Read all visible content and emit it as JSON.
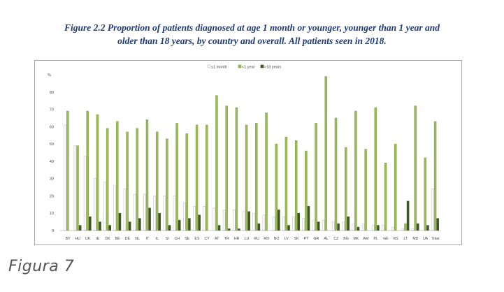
{
  "caption": {
    "line1": "Figure 2.2 Proportion of patients diagnosed at age 1 month or younger, younger than 1 year and",
    "line2": "older than 18 years, by country and overall. All patients seen in 2018."
  },
  "figure_label": "Figura 7",
  "colors": {
    "le1month": "#ffffff",
    "lt1year": "#9bbb59",
    "gt18years": "#3f5426",
    "bar_outline_light": "#b7b7b7",
    "bar_outline_green": "#7f9f45"
  },
  "chart_data": {
    "type": "bar",
    "title": "",
    "xlabel": "",
    "ylabel": "%",
    "ylim": [
      0,
      90
    ],
    "yticks": [
      0,
      10,
      20,
      30,
      40,
      50,
      60,
      70,
      80
    ],
    "grid": false,
    "legend": "top-center",
    "categories": [
      "BY",
      "HU",
      "UK",
      "IE",
      "DK",
      "BE",
      "DE",
      "NL",
      "IT",
      "IL",
      "SI",
      "CH",
      "SE",
      "ES",
      "CY",
      "AT",
      "TR",
      "HR",
      "LU",
      "RU",
      "RO",
      "NO",
      "LV",
      "SK",
      "PT",
      "GR",
      "AL",
      "CZ",
      "BG",
      "MK",
      "AM",
      "PL",
      "GE",
      "RS",
      "LT",
      "MD",
      "UA",
      "Total"
    ],
    "series": [
      {
        "name": "≤1 month",
        "values": [
          61,
          49,
          43,
          30,
          28,
          26,
          24,
          21,
          21,
          20,
          20,
          20,
          16,
          14,
          14,
          13,
          12,
          12,
          11,
          10,
          9,
          8,
          8,
          8,
          7,
          6,
          6,
          5,
          5,
          4,
          4,
          3,
          3,
          2,
          1,
          1,
          0,
          24
        ]
      },
      {
        "name": "<1 year",
        "values": [
          69,
          49,
          69,
          67,
          59,
          63,
          57,
          59,
          64,
          57,
          53,
          62,
          56,
          61,
          61,
          78,
          72,
          71,
          61,
          62,
          68,
          50,
          54,
          52,
          46,
          62,
          89,
          65,
          48,
          69,
          47,
          71,
          39,
          50,
          4,
          72,
          42,
          63
        ]
      },
      {
        "name": ">18 years",
        "values": [
          0,
          3,
          8,
          5,
          3,
          10,
          5,
          7,
          13,
          10,
          3,
          6,
          7,
          9,
          0,
          3,
          1,
          1,
          11,
          4,
          0,
          12,
          3,
          10,
          14,
          5,
          0,
          4,
          8,
          2,
          0,
          3,
          0,
          0,
          17,
          4,
          3,
          7
        ]
      }
    ]
  }
}
